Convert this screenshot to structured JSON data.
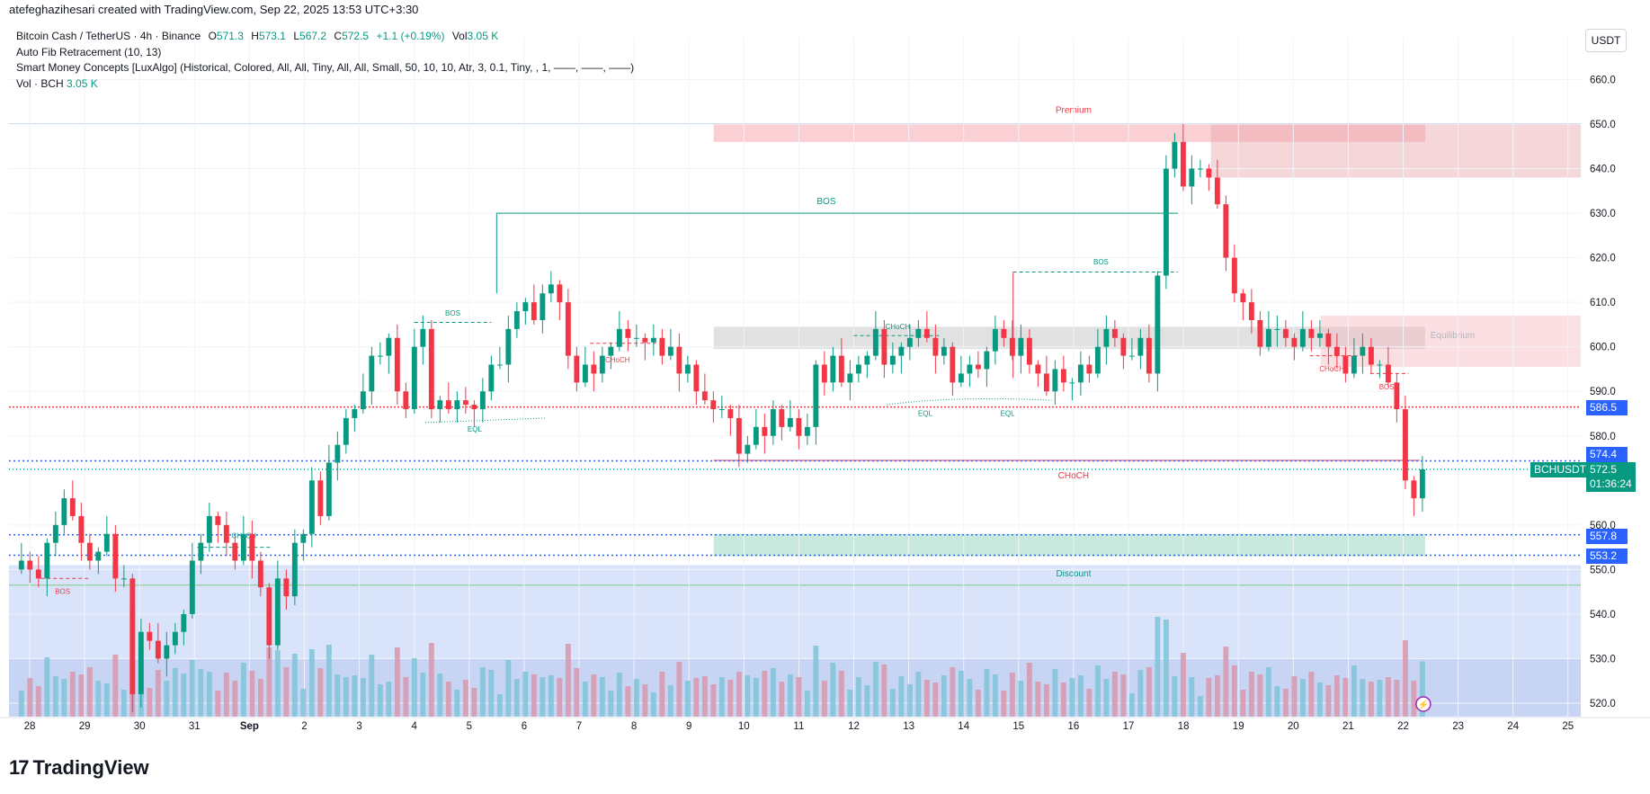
{
  "header": {
    "creator_line": "atefeghazihesari created with TradingView.com, Sep 22, 2025 13:53 UTC+3:30"
  },
  "legend": {
    "symbol": "Bitcoin Cash / TetherUS · 4h · Binance",
    "o_label": "O",
    "o_value": "571.3",
    "h_label": "H",
    "h_value": "573.1",
    "l_label": "L",
    "l_value": "567.2",
    "c_label": "C",
    "c_value": "572.5",
    "change": "+1.1 (+0.19%)",
    "vol_label": "Vol",
    "vol_value": "3.05 K",
    "indicator1": "Auto Fib Retracement (10, 13)",
    "indicator2": "Smart Money Concepts [LuxAlgo] (Historical, Colored, All, All, Tiny, All, All, Small, 50, 10, 10, Atr, 3, 0.1, Tiny, , 1, ——, ——, ——)",
    "indicator3_label": "Vol · BCH",
    "indicator3_value": "3.05 K"
  },
  "currency": "USDT",
  "brand": "TradingView",
  "price_tags": {
    "p586": "586.5",
    "p574": "574.4",
    "current_symbol": "BCHUSDT",
    "current_price": "572.5",
    "countdown": "01:36:24",
    "p557": "557.8",
    "p553": "553.2"
  },
  "colors": {
    "up": "#089981",
    "down": "#f23645",
    "premium_fill": "#f7a9b1",
    "discount_fill": "#9bb8f5",
    "equilibrium_fill": "#c8c8c8",
    "up_volume": "#7fc4d8",
    "down_volume": "#d896ab"
  },
  "chart_data": {
    "type": "candlestick",
    "timeframe": "4h",
    "ylim": [
      516,
      666
    ],
    "y_ticks": [
      660,
      650,
      640,
      630,
      620,
      610,
      600,
      590,
      580,
      560,
      550,
      540,
      530,
      520
    ],
    "x_ticks": [
      {
        "label": "28",
        "day": 0
      },
      {
        "label": "29",
        "day": 1
      },
      {
        "label": "30",
        "day": 2
      },
      {
        "label": "31",
        "day": 3
      },
      {
        "label": "Sep",
        "day": 4
      },
      {
        "label": "2",
        "day": 5
      },
      {
        "label": "3",
        "day": 6
      },
      {
        "label": "4",
        "day": 7
      },
      {
        "label": "5",
        "day": 8
      },
      {
        "label": "6",
        "day": 9
      },
      {
        "label": "7",
        "day": 10
      },
      {
        "label": "8",
        "day": 11
      },
      {
        "label": "9",
        "day": 12
      },
      {
        "label": "10",
        "day": 13
      },
      {
        "label": "11",
        "day": 14
      },
      {
        "label": "12",
        "day": 15
      },
      {
        "label": "13",
        "day": 16
      },
      {
        "label": "14",
        "day": 17
      },
      {
        "label": "15",
        "day": 18
      },
      {
        "label": "16",
        "day": 19
      },
      {
        "label": "17",
        "day": 20
      },
      {
        "label": "18",
        "day": 21
      },
      {
        "label": "19",
        "day": 22
      },
      {
        "label": "20",
        "day": 23
      },
      {
        "label": "21",
        "day": 24
      },
      {
        "label": "22",
        "day": 25
      },
      {
        "label": "23",
        "day": 26
      },
      {
        "label": "24",
        "day": 27
      },
      {
        "label": "25",
        "day": 28
      }
    ],
    "closes": [
      552,
      550,
      548,
      556,
      560,
      566,
      562,
      556,
      552,
      554,
      558,
      548,
      548,
      522,
      536,
      534,
      530,
      533,
      536,
      540,
      552,
      556,
      562,
      560,
      556,
      552,
      558,
      552,
      546,
      533,
      548,
      544,
      556,
      558,
      570,
      562,
      574,
      578,
      584,
      586,
      590,
      598,
      598,
      602,
      590,
      586,
      600,
      604,
      586,
      588,
      586,
      588,
      587,
      586,
      590,
      596,
      596,
      604,
      608,
      610,
      606,
      612,
      614,
      610,
      598,
      592,
      596,
      594,
      598,
      600,
      604,
      602,
      602,
      601,
      602,
      598,
      600,
      594,
      596,
      590,
      588,
      586,
      586,
      584,
      576,
      578,
      582,
      580,
      586,
      582,
      584,
      580,
      582,
      596,
      592,
      598,
      592,
      594,
      596,
      598,
      604,
      596,
      598,
      600,
      602,
      604,
      602,
      598,
      600,
      592,
      594,
      596,
      595,
      599,
      604,
      602,
      598,
      602,
      596,
      594,
      590,
      595,
      592,
      592,
      596,
      594,
      600,
      604,
      602,
      598,
      598,
      602,
      594,
      616,
      640,
      646,
      636,
      640,
      640,
      638,
      632,
      620,
      612,
      610,
      606,
      600,
      604,
      604,
      602,
      600,
      604,
      602,
      603,
      600,
      598,
      594,
      598,
      600,
      596,
      596,
      592,
      586,
      570,
      566,
      572.5
    ],
    "bos_labels": [
      "BOS",
      "BOS",
      "BOS",
      "BOS",
      "BOS"
    ],
    "choch_labels": [
      "CHoCH",
      "CHoCH",
      "CHoCH",
      "CHoCH",
      "CHoCH"
    ],
    "eql_labels": [
      "EQL",
      "EQL",
      "EQL"
    ],
    "zone_labels": {
      "premium": "Premium",
      "equilibrium": "Equilibrium",
      "discount": "Discount"
    },
    "volume_label": "Vol · BCH"
  }
}
